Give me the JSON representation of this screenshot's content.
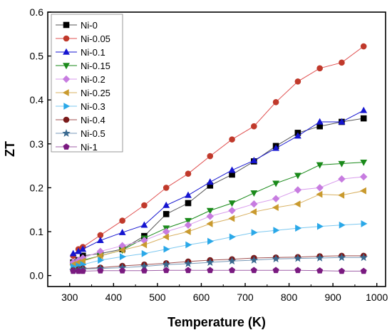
{
  "chart_data": {
    "type": "scatter",
    "xlabel": "Temperature (K)",
    "ylabel": "ZT",
    "xlim": [
      250,
      1020
    ],
    "ylim": [
      -0.025,
      0.6
    ],
    "xticks": [
      300,
      400,
      500,
      600,
      700,
      800,
      900,
      1000
    ],
    "yticks": [
      0.0,
      0.1,
      0.2,
      0.3,
      0.4,
      0.5,
      0.6
    ],
    "xtick_labels": [
      "300",
      "400",
      "500",
      "600",
      "700",
      "800",
      "900",
      "1000"
    ],
    "ytick_labels": [
      "0.0",
      "0.1",
      "0.2",
      "0.3",
      "0.4",
      "0.5",
      "0.6"
    ],
    "grid": false,
    "legend_placement": "top-left",
    "x": [
      308,
      320,
      330,
      370,
      420,
      470,
      520,
      570,
      620,
      670,
      720,
      770,
      820,
      870,
      920,
      970
    ],
    "series": [
      {
        "name": "Ni-0",
        "marker": "square",
        "color": "#000000",
        "line": "#555555",
        "values": [
          0.03,
          0.035,
          0.045,
          0.05,
          0.06,
          0.09,
          0.14,
          0.165,
          0.205,
          0.23,
          0.26,
          0.295,
          0.325,
          0.34,
          0.35,
          0.358
        ]
      },
      {
        "name": "Ni-0.05",
        "marker": "circle",
        "color": "#c0392b",
        "line": "#e05050",
        "values": [
          0.045,
          0.06,
          0.065,
          0.092,
          0.125,
          0.16,
          0.2,
          0.232,
          0.272,
          0.31,
          0.34,
          0.395,
          0.442,
          0.472,
          0.485,
          0.522
        ]
      },
      {
        "name": "Ni-0.1",
        "marker": "triangle-up",
        "color": "#1515d0",
        "line": "#1515d0",
        "values": [
          0.05,
          0.055,
          0.06,
          0.08,
          0.098,
          0.115,
          0.16,
          0.183,
          0.213,
          0.24,
          0.262,
          0.29,
          0.318,
          0.35,
          0.35,
          0.376
        ]
      },
      {
        "name": "Ni-0.15",
        "marker": "triangle-down",
        "color": "#1a8a1a",
        "line": "#1a8a1a",
        "values": [
          0.025,
          0.03,
          0.035,
          0.045,
          0.058,
          0.085,
          0.108,
          0.125,
          0.148,
          0.165,
          0.188,
          0.21,
          0.228,
          0.252,
          0.255,
          0.258
        ]
      },
      {
        "name": "Ni-0.2",
        "marker": "diamond",
        "color": "#c77ce0",
        "line": "#d89bec",
        "values": [
          0.03,
          0.035,
          0.04,
          0.055,
          0.068,
          0.08,
          0.1,
          0.115,
          0.135,
          0.148,
          0.163,
          0.175,
          0.195,
          0.2,
          0.22,
          0.225
        ]
      },
      {
        "name": "Ni-0.25",
        "marker": "triangle-left",
        "color": "#c99a2e",
        "line": "#d8b060",
        "values": [
          0.025,
          0.03,
          0.033,
          0.045,
          0.058,
          0.07,
          0.088,
          0.1,
          0.118,
          0.13,
          0.145,
          0.155,
          0.163,
          0.185,
          0.183,
          0.193
        ]
      },
      {
        "name": "Ni-0.3",
        "marker": "triangle-right",
        "color": "#2aa8e8",
        "line": "#7cc8f0",
        "values": [
          0.02,
          0.022,
          0.025,
          0.035,
          0.043,
          0.05,
          0.06,
          0.07,
          0.078,
          0.088,
          0.098,
          0.103,
          0.108,
          0.112,
          0.115,
          0.118
        ]
      },
      {
        "name": "Ni-0.4",
        "marker": "circle",
        "color": "#7a1a1a",
        "line": "#a05050",
        "values": [
          0.012,
          0.014,
          0.016,
          0.018,
          0.022,
          0.025,
          0.028,
          0.032,
          0.035,
          0.037,
          0.04,
          0.041,
          0.042,
          0.044,
          0.045,
          0.045
        ]
      },
      {
        "name": "Ni-0.5",
        "marker": "star",
        "color": "#3a6a90",
        "line": "#7a9ab8",
        "values": [
          0.012,
          0.013,
          0.015,
          0.016,
          0.018,
          0.021,
          0.025,
          0.027,
          0.03,
          0.033,
          0.035,
          0.038,
          0.039,
          0.04,
          0.041,
          0.041
        ]
      },
      {
        "name": "Ni-1",
        "marker": "pentagon",
        "color": "#7a1a80",
        "line": "#a060a8",
        "values": [
          0.01,
          0.01,
          0.01,
          0.011,
          0.011,
          0.011,
          0.012,
          0.012,
          0.012,
          0.012,
          0.012,
          0.012,
          0.012,
          0.011,
          0.01,
          0.01
        ]
      }
    ]
  }
}
